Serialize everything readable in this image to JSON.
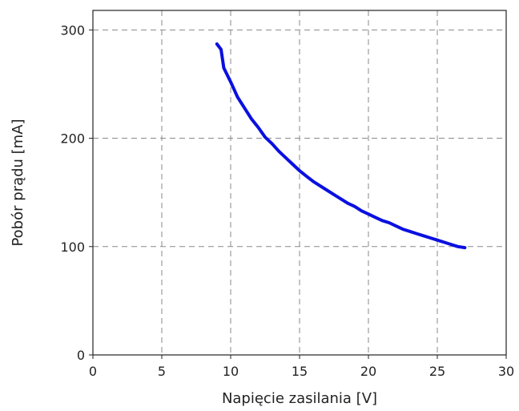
{
  "chart_data": {
    "type": "line",
    "xlabel": "Napięcie zasilania [V]",
    "ylabel": "Pobór prądu [mA]",
    "xlim": [
      0,
      30
    ],
    "ylim": [
      0,
      318
    ],
    "xticks": [
      "0",
      "5",
      "10",
      "15",
      "20",
      "25",
      "30"
    ],
    "yticks": [
      "0",
      "100",
      "200",
      "300"
    ],
    "xtick_values": [
      0,
      5,
      10,
      15,
      20,
      25,
      30
    ],
    "ytick_values": [
      0,
      100,
      200,
      300
    ],
    "grid": true,
    "series": [
      {
        "color": "#0a10e0",
        "x": [
          9.0,
          9.3,
          9.5,
          10.0,
          10.5,
          11.0,
          11.5,
          12.0,
          12.5,
          13.0,
          13.5,
          14.0,
          14.5,
          15.0,
          15.5,
          16.0,
          16.5,
          17.0,
          17.5,
          18.0,
          18.5,
          19.0,
          19.5,
          20.0,
          20.5,
          21.0,
          21.5,
          22.0,
          22.5,
          23.0,
          23.5,
          24.0,
          24.5,
          25.0,
          25.5,
          26.0,
          26.5,
          27.0
        ],
        "y": [
          287,
          282,
          265,
          252,
          238,
          228,
          218,
          210,
          201,
          195,
          188,
          182,
          176,
          170,
          165,
          160,
          156,
          152,
          148,
          144,
          140,
          137,
          133,
          130,
          127,
          124,
          122,
          119,
          116,
          114,
          112,
          110,
          108,
          106,
          104,
          102,
          100,
          99
        ]
      }
    ]
  }
}
